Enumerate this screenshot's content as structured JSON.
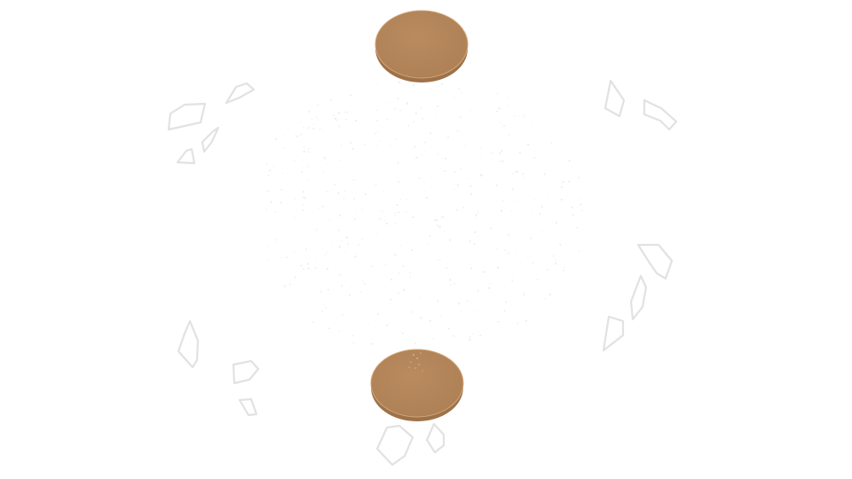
{
  "colors": {
    "background": "#ffffff",
    "disc_fill": "#b4865a",
    "disc_edge": "#9e7249",
    "disc_rim": "#d1a678",
    "shard_outline": "#e2e2e2",
    "speckle": "#eeeeee"
  },
  "scene": {
    "discs": [
      {
        "name": "top-disc"
      },
      {
        "name": "bottom-disc"
      }
    ],
    "shards": {
      "top_left_count": 4,
      "top_right_count": 2,
      "bottom_left_count": 3,
      "bottom_right_count": 3,
      "bottom_center_count": 2
    }
  }
}
